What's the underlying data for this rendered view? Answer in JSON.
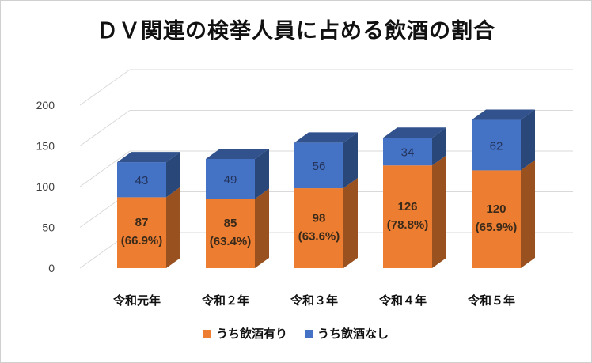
{
  "chart_data": {
    "type": "bar",
    "title": "ＤＶ関連の検挙人員に占める飲酒の割合",
    "categories": [
      "令和元年",
      "令和２年",
      "令和３年",
      "令和４年",
      "令和５年"
    ],
    "series": [
      {
        "name": "うち飲酒有り",
        "values": [
          87,
          85,
          98,
          126,
          120
        ],
        "percent_labels": [
          "(66.9%)",
          "(63.4%)",
          "(63.6%)",
          "(78.8%)",
          "(65.9%)"
        ],
        "color": "#ED7D31"
      },
      {
        "name": "うち飲酒なし",
        "values": [
          43,
          49,
          56,
          34,
          62
        ],
        "color": "#4472C4"
      }
    ],
    "stacked": true,
    "three_d": true,
    "ylim": [
      0,
      200
    ],
    "yticks": [
      0,
      50,
      100,
      150,
      200
    ],
    "grid": true,
    "legend_position": "bottom"
  }
}
